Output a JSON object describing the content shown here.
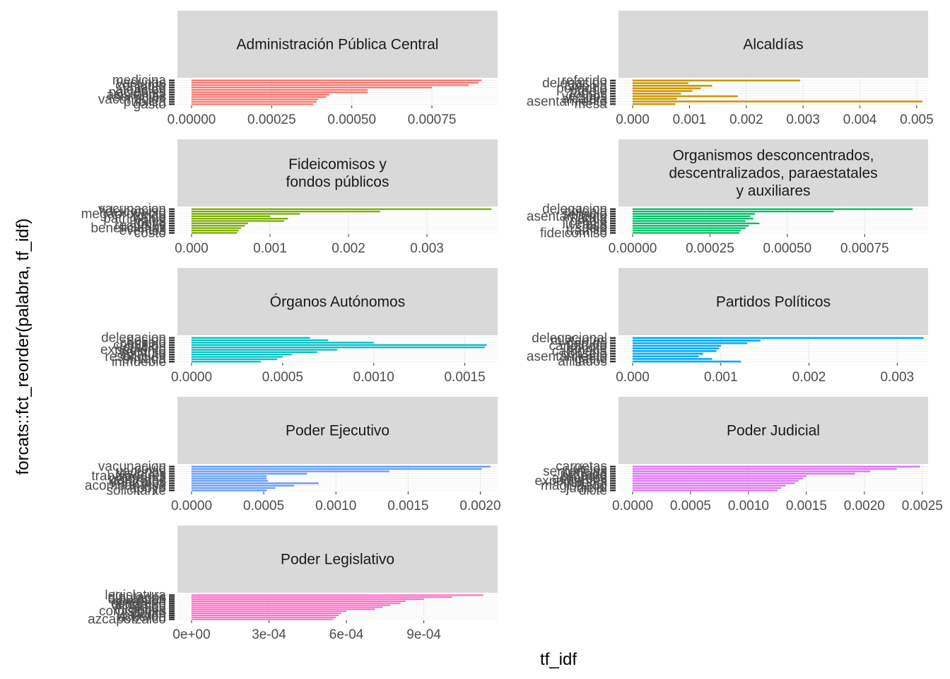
{
  "chart_data": {
    "type": "bar",
    "orientation": "horizontal",
    "xlabel": "tf_idf",
    "ylabel": "forcats::fct_reorder(palabra, tf_idf)",
    "grid": true,
    "legend": "none",
    "facets": [
      {
        "title": "Administración Pública Central",
        "color": "#F8766D",
        "xlim": [
          0,
          0.000955
        ],
        "ticks": [
          0,
          0.00025,
          0.0005,
          0.00075
        ],
        "tick_labels": [
          "0.00000",
          "0.00025",
          "0.00050",
          "0.00075"
        ],
        "categories": [
          "medicina",
          "vacunas",
          "conjunto",
          "salud",
          "atencion",
          "pacientes",
          "asistencia",
          "servicios",
          "vacunacion",
          "publica",
          "gasto"
        ],
        "values": [
          0.000905,
          0.000895,
          0.000865,
          0.00075,
          0.00055,
          0.00055,
          0.00043,
          0.00042,
          0.000395,
          0.00039,
          0.00038
        ]
      },
      {
        "title": "Alcaldías",
        "color": "#CD9600",
        "xlim": [
          0,
          0.0052
        ],
        "ticks": [
          0,
          0.001,
          0.002,
          0.003,
          0.004,
          0.005
        ],
        "tick_labels": [
          "0.000",
          "0.001",
          "0.002",
          "0.003",
          "0.004",
          "0.005"
        ],
        "categories": [
          "referido",
          "delegacion",
          "colonia",
          "poligono",
          "predio",
          "obras",
          "vecinos",
          "alcaldia",
          "asentamiento",
          "mesa"
        ],
        "values": [
          0.00295,
          0.00098,
          0.0014,
          0.0012,
          0.00105,
          0.00085,
          0.00185,
          0.00078,
          0.0051,
          0.00075
        ]
      },
      {
        "title": "Fideicomisos y\nfondos públicos",
        "color": "#7CAE00",
        "xlim": [
          0,
          0.0039
        ],
        "ticks": [
          0,
          0.001,
          0.002,
          0.003
        ],
        "tick_labels": [
          "0.000",
          "0.001",
          "0.002",
          "0.003"
        ],
        "categories": [
          "vacunacion",
          "fideicomiso",
          "megaproyecto",
          "fondo",
          "patrimonio",
          "vales",
          "apoyo",
          "recursos",
          "beneficiarios",
          "eventos",
          "costo"
        ],
        "values": [
          0.00382,
          0.0024,
          0.00138,
          0.001,
          0.00123,
          0.00118,
          0.00072,
          0.00068,
          0.00063,
          0.0006,
          0.00058
        ]
      },
      {
        "title": "Organismos desconcentrados,\ndescentralizados, paraestatales\ny auxiliares",
        "color": "#00BE67",
        "xlim": [
          0,
          0.000955
        ],
        "ticks": [
          0,
          0.00025,
          0.0005,
          0.00075
        ],
        "tick_labels": [
          "0.00000",
          "0.00025",
          "0.00050",
          "0.00075"
        ],
        "categories": [
          "delegacion",
          "colonia",
          "servicio",
          "asentamiento",
          "agua",
          "predio",
          "licencia",
          "uso",
          "suelo",
          "tramite",
          "fideicomiso"
        ],
        "values": [
          0.000905,
          0.00065,
          0.000395,
          0.00038,
          0.00039,
          0.000365,
          0.00041,
          0.000375,
          0.000365,
          0.00035,
          0.000345
        ]
      },
      {
        "title": "Órganos Autónomos",
        "color": "#00BFC4",
        "xlim": [
          0,
          0.00168
        ],
        "ticks": [
          0,
          0.0005,
          0.001,
          0.0015
        ],
        "tick_labels": [
          "0.0000",
          "0.0005",
          "0.0010",
          "0.0015"
        ],
        "categories": [
          "delegacion",
          "sesion",
          "consejo",
          "comision",
          "votacion",
          "expediente",
          "recurso",
          "instituto",
          "resolucion",
          "privada",
          "inmueble"
        ],
        "values": [
          0.00065,
          0.00075,
          0.001,
          0.00162,
          0.00161,
          0.0008,
          0.00069,
          0.00055,
          0.0005,
          0.00047,
          0.00038
        ]
      },
      {
        "title": "Partidos Políticos",
        "color": "#00A9FF",
        "xlim": [
          0,
          0.00335
        ],
        "ticks": [
          0,
          0.001,
          0.002,
          0.003
        ],
        "tick_labels": [
          "0.000",
          "0.001",
          "0.002",
          "0.003"
        ],
        "categories": [
          "delegacional",
          "militantes",
          "partido",
          "candidato",
          "comite",
          "campana",
          "consejo",
          "asentamiento",
          "gasto",
          "afiliados"
        ],
        "values": [
          0.0033,
          0.00145,
          0.0013,
          0.001,
          0.00098,
          0.00095,
          0.0008,
          0.00075,
          0.0009,
          0.00123
        ]
      },
      {
        "title": "Poder Ejecutivo",
        "color": "#619CFF",
        "xlim": [
          0,
          0.00212
        ],
        "ticks": [
          0,
          0.0005,
          0.001,
          0.0015,
          0.002
        ],
        "tick_labels": [
          "0.0000",
          "0.0005",
          "0.0010",
          "0.0015",
          "0.0020"
        ],
        "categories": [
          "vacunacion",
          "covid",
          "vacunas",
          "residuos",
          "trabajadores",
          "programa",
          "contratos",
          "vehiculos",
          "acompanarse",
          "apoyo",
          "solicitante"
        ],
        "values": [
          0.00207,
          0.00201,
          0.00137,
          0.0008,
          0.00052,
          0.00052,
          0.00053,
          0.00088,
          0.00071,
          0.00058,
          0.00052
        ]
      },
      {
        "title": "Poder Judicial",
        "color": "#DC71FA",
        "xlim": [
          0,
          0.00255
        ],
        "ticks": [
          0,
          0.0005,
          0.001,
          0.0015,
          0.002,
          0.0025
        ],
        "tick_labels": [
          "0.0000",
          "0.0005",
          "0.0010",
          "0.0015",
          "0.0020",
          "0.0025"
        ],
        "categories": [
          "carpetas",
          "juicios",
          "sentencias",
          "juzgado",
          "amparo",
          "acuerdos",
          "expedientes",
          "tribunal",
          "magistrado",
          "judicial",
          "dicte"
        ],
        "values": [
          0.00248,
          0.00228,
          0.00205,
          0.00192,
          0.0015,
          0.00147,
          0.00143,
          0.0014,
          0.00132,
          0.00128,
          0.00125
        ]
      },
      {
        "title": "Poder Legislativo",
        "color": "#FF61C3",
        "xlim": [
          0,
          0.001186
        ],
        "ticks": [
          0,
          0.0003,
          0.0006,
          0.0009
        ],
        "tick_labels": [
          "0e+00",
          "3e-04",
          "6e-04",
          "9e-04"
        ],
        "categories": [
          "legislatura",
          "diputados",
          "diputadas",
          "comision",
          "congreso",
          "dictamen",
          "sesion",
          "iniciativa",
          "comisiones",
          "punto",
          "votacion",
          "acuerdo",
          "azcapotzalco"
        ],
        "values": [
          0.00113,
          0.00101,
          0.0009,
          0.00083,
          0.00081,
          0.00077,
          0.00074,
          0.00071,
          0.0006,
          0.00058,
          0.00057,
          0.00056,
          0.00055
        ]
      }
    ]
  }
}
